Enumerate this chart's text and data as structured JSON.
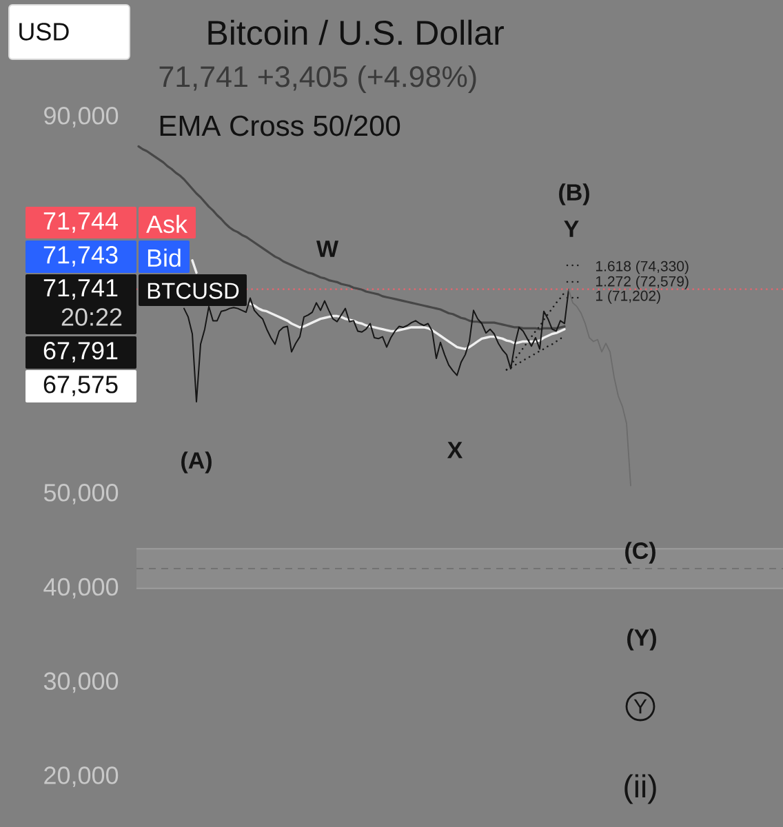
{
  "chart_data": {
    "type": "line",
    "title": "Bitcoin / U.S. Dollar",
    "subtitle": "71,741 +3,405 (+4.98%)",
    "categories": [
      null,
      null,
      null,
      null,
      null,
      null,
      null,
      null,
      null,
      null,
      null,
      null,
      null,
      null,
      null,
      null,
      null,
      null,
      null,
      null,
      null,
      null,
      null,
      null,
      null,
      null,
      null,
      null,
      null,
      null,
      null,
      null,
      null,
      null,
      null,
      null,
      null,
      null,
      null,
      null,
      null,
      null,
      null,
      null,
      null,
      null,
      null,
      null,
      null,
      null,
      null,
      null,
      null,
      null,
      null,
      null,
      null,
      null,
      null,
      null,
      null,
      null,
      null,
      null,
      null,
      null,
      null,
      null,
      null,
      null,
      null,
      null,
      null,
      null,
      null,
      null,
      null,
      null,
      null,
      null,
      null,
      null,
      null,
      null,
      null,
      null,
      null,
      null,
      null,
      null,
      null,
      null,
      null,
      null,
      null,
      null,
      null,
      null,
      null,
      null,
      null,
      null,
      null,
      null,
      null,
      null,
      null,
      null,
      null,
      null,
      null,
      null,
      null,
      null,
      null,
      null,
      null,
      null,
      null,
      null
    ],
    "ylim": [
      20000,
      90000
    ],
    "yticks": [
      {
        "value": 20000,
        "label": "20,000"
      },
      {
        "value": 30000,
        "label": "30,000"
      },
      {
        "value": 40000,
        "label": "40,000"
      },
      {
        "value": 50000,
        "label": "50,000"
      },
      {
        "value": 90000,
        "label": "90,000"
      }
    ],
    "tick_labels": "y",
    "series": [
      {
        "color": "#474747",
        "values": [
          86900,
          86600,
          86400,
          86100,
          85800,
          85500,
          85200,
          84800,
          84500,
          84100,
          83800,
          83400,
          82900,
          82400,
          81900,
          81500,
          81000,
          80500,
          80100,
          79600,
          79200,
          78700,
          78300,
          78000,
          77800,
          77500,
          77300,
          77000,
          76700,
          76400,
          76100,
          75800,
          75500,
          75200,
          75000,
          74700,
          74500,
          74300,
          74100,
          73900,
          73700,
          73500,
          73400,
          73200,
          73000,
          72900,
          72700,
          72600,
          72500,
          72300,
          72200,
          72100,
          71900,
          71800,
          71700,
          71500,
          71400,
          71300,
          71200,
          71000,
          70900,
          70800,
          70700,
          70600,
          70500,
          70400,
          70300,
          70200,
          70100,
          70000,
          69900,
          69800,
          69700,
          69600,
          69400,
          69200,
          69100,
          68900,
          68700,
          68600,
          68400,
          68300,
          68300,
          68200,
          68200,
          68200,
          68200,
          68100,
          68000,
          67900,
          67800,
          67700,
          67700,
          67600,
          67600,
          67600,
          67600,
          67500,
          67600,
          67600,
          67600,
          67600,
          67700,
          67800,
          null,
          null,
          null,
          null,
          null,
          null,
          null,
          null,
          null,
          null,
          null,
          null,
          null,
          null,
          null,
          null
        ]
      },
      {
        "color": "#efefef",
        "values": [
          null,
          null,
          null,
          null,
          null,
          null,
          null,
          null,
          null,
          null,
          null,
          null,
          null,
          74800,
          73500,
          null,
          null,
          null,
          null,
          null,
          null,
          null,
          null,
          null,
          null,
          null,
          null,
          70200,
          70000,
          69700,
          69500,
          69400,
          69200,
          69000,
          68800,
          68600,
          68400,
          68100,
          67900,
          67700,
          67800,
          68000,
          68200,
          68400,
          68600,
          68700,
          68800,
          68900,
          68900,
          68800,
          68600,
          68500,
          68400,
          68200,
          68100,
          67900,
          67800,
          67700,
          67600,
          67500,
          67400,
          67300,
          67300,
          67400,
          67500,
          67600,
          67700,
          67700,
          67700,
          67700,
          67600,
          67400,
          67100,
          66800,
          66500,
          66200,
          65900,
          65600,
          65500,
          65400,
          65600,
          65900,
          66200,
          66500,
          66600,
          66700,
          66700,
          66600,
          66500,
          66300,
          66200,
          66000,
          66100,
          66200,
          66200,
          66200,
          66200,
          66300,
          66600,
          66800,
          67000,
          67100,
          67300,
          67500,
          null,
          null,
          null,
          null,
          null,
          null,
          null,
          null,
          null,
          null,
          null,
          null,
          null,
          null,
          null,
          null
        ]
      },
      {
        "color": "#161616",
        "values": [
          null,
          null,
          null,
          null,
          null,
          null,
          null,
          null,
          null,
          null,
          null,
          69700,
          68800,
          67000,
          59800,
          65900,
          67500,
          69900,
          68400,
          68400,
          69400,
          69500,
          69700,
          69800,
          69700,
          69500,
          69300,
          70800,
          69500,
          69000,
          68600,
          67500,
          66600,
          65900,
          67300,
          67700,
          67800,
          65100,
          66000,
          66700,
          68800,
          69000,
          69300,
          70300,
          69500,
          70500,
          69500,
          68600,
          68300,
          69000,
          69700,
          68300,
          68400,
          67300,
          67200,
          67500,
          68100,
          66600,
          66500,
          66700,
          65600,
          66600,
          67300,
          67800,
          67700,
          67900,
          68200,
          68400,
          68100,
          67900,
          68100,
          67300,
          64400,
          66100,
          64800,
          63700,
          63100,
          62600,
          64000,
          64800,
          66200,
          69500,
          68600,
          68100,
          67100,
          67500,
          67000,
          66000,
          65300,
          64800,
          63300,
          65900,
          67700,
          67300,
          66500,
          65700,
          66600,
          65400,
          69400,
          68600,
          67500,
          67300,
          68400,
          68100,
          71700,
          null,
          null,
          null,
          null,
          null,
          null,
          null,
          null,
          null,
          null,
          null,
          null,
          null,
          null,
          null
        ]
      },
      {
        "color": "#6b6b6b",
        "values": [
          null,
          null,
          null,
          null,
          null,
          null,
          null,
          null,
          null,
          null,
          null,
          null,
          null,
          null,
          null,
          null,
          null,
          null,
          null,
          null,
          null,
          null,
          null,
          null,
          null,
          null,
          null,
          null,
          null,
          null,
          null,
          null,
          null,
          null,
          null,
          null,
          null,
          null,
          null,
          null,
          null,
          null,
          null,
          null,
          null,
          null,
          null,
          null,
          null,
          null,
          null,
          null,
          null,
          null,
          null,
          null,
          null,
          null,
          null,
          null,
          null,
          null,
          null,
          null,
          null,
          null,
          null,
          null,
          null,
          null,
          null,
          null,
          null,
          null,
          null,
          null,
          null,
          null,
          null,
          null,
          null,
          null,
          null,
          null,
          null,
          null,
          null,
          null,
          null,
          null,
          null,
          null,
          null,
          null,
          null,
          null,
          null,
          null,
          null,
          null,
          null,
          null,
          null,
          null,
          71700,
          70300,
          69900,
          69200,
          68100,
          66600,
          66200,
          66400,
          65100,
          66000,
          65100,
          62400,
          60400,
          59300,
          57500,
          50900
        ]
      },
      {
        "color": "#1a1a1a",
        "line_style": "dotted",
        "values": [
          null,
          null,
          null,
          null,
          null,
          null,
          null,
          null,
          null,
          null,
          null,
          null,
          null,
          null,
          null,
          null,
          null,
          null,
          null,
          null,
          null,
          null,
          null,
          null,
          null,
          null,
          null,
          null,
          null,
          null,
          null,
          null,
          null,
          null,
          null,
          null,
          null,
          null,
          null,
          null,
          null,
          null,
          null,
          null,
          null,
          null,
          null,
          null,
          null,
          null,
          null,
          null,
          null,
          null,
          null,
          null,
          null,
          null,
          null,
          null,
          null,
          null,
          null,
          null,
          null,
          null,
          null,
          null,
          null,
          null,
          null,
          null,
          null,
          null,
          null,
          null,
          null,
          null,
          null,
          null,
          null,
          null,
          null,
          null,
          null,
          null,
          null,
          null,
          null,
          63200,
          63700,
          64300,
          64900,
          65500,
          66100,
          66700,
          67300,
          67800,
          68500,
          69100,
          69700,
          70300,
          70800,
          71400,
          null,
          null,
          null,
          null,
          null,
          null,
          null,
          null,
          null,
          null,
          null,
          null,
          null,
          null,
          null,
          null
        ]
      },
      {
        "color": "#1a1a1a",
        "line_style": "dotted",
        "values": [
          null,
          null,
          null,
          null,
          null,
          null,
          null,
          null,
          null,
          null,
          null,
          null,
          null,
          null,
          null,
          null,
          null,
          null,
          null,
          null,
          null,
          null,
          null,
          null,
          null,
          null,
          null,
          null,
          null,
          null,
          null,
          null,
          null,
          null,
          null,
          null,
          null,
          null,
          null,
          null,
          null,
          null,
          null,
          null,
          null,
          null,
          null,
          null,
          null,
          null,
          null,
          null,
          null,
          null,
          null,
          null,
          null,
          null,
          null,
          null,
          null,
          null,
          null,
          null,
          null,
          null,
          null,
          null,
          null,
          null,
          null,
          null,
          null,
          null,
          null,
          null,
          null,
          null,
          null,
          null,
          null,
          null,
          null,
          null,
          null,
          null,
          null,
          null,
          null,
          63200,
          63400,
          63700,
          63900,
          64200,
          64400,
          64700,
          64900,
          65200,
          65400,
          65700,
          65900,
          66200,
          66500,
          66700,
          null,
          null,
          null,
          null,
          null,
          null,
          null,
          null,
          null,
          null,
          null,
          null,
          null,
          null,
          null,
          null
        ]
      }
    ],
    "bands": [
      {
        "axis": "y",
        "from": 40000,
        "to": 44200,
        "color": "#8b8b8b"
      }
    ],
    "ref_lines": [
      {
        "axis": "y",
        "value": 71741,
        "color": "#e0666f",
        "line_style": "dotted"
      },
      {
        "axis": "y",
        "value": 42100,
        "color": "#6f6f6f",
        "line_style": "dashed"
      }
    ],
    "annotations": [
      "USD",
      "EMA Cross 50/200",
      "71,744",
      "Ask",
      "71,743",
      "Bid",
      "71,741",
      "20:22",
      "BTCUSD",
      "67,791",
      "67,575",
      "W",
      "(A)",
      "X",
      "(B)",
      "Y",
      "(C)",
      "(Y)",
      "Y",
      "(ii)",
      "1.618 (74,330)",
      "1.272 (72,579)",
      "1 (71,202)"
    ]
  }
}
